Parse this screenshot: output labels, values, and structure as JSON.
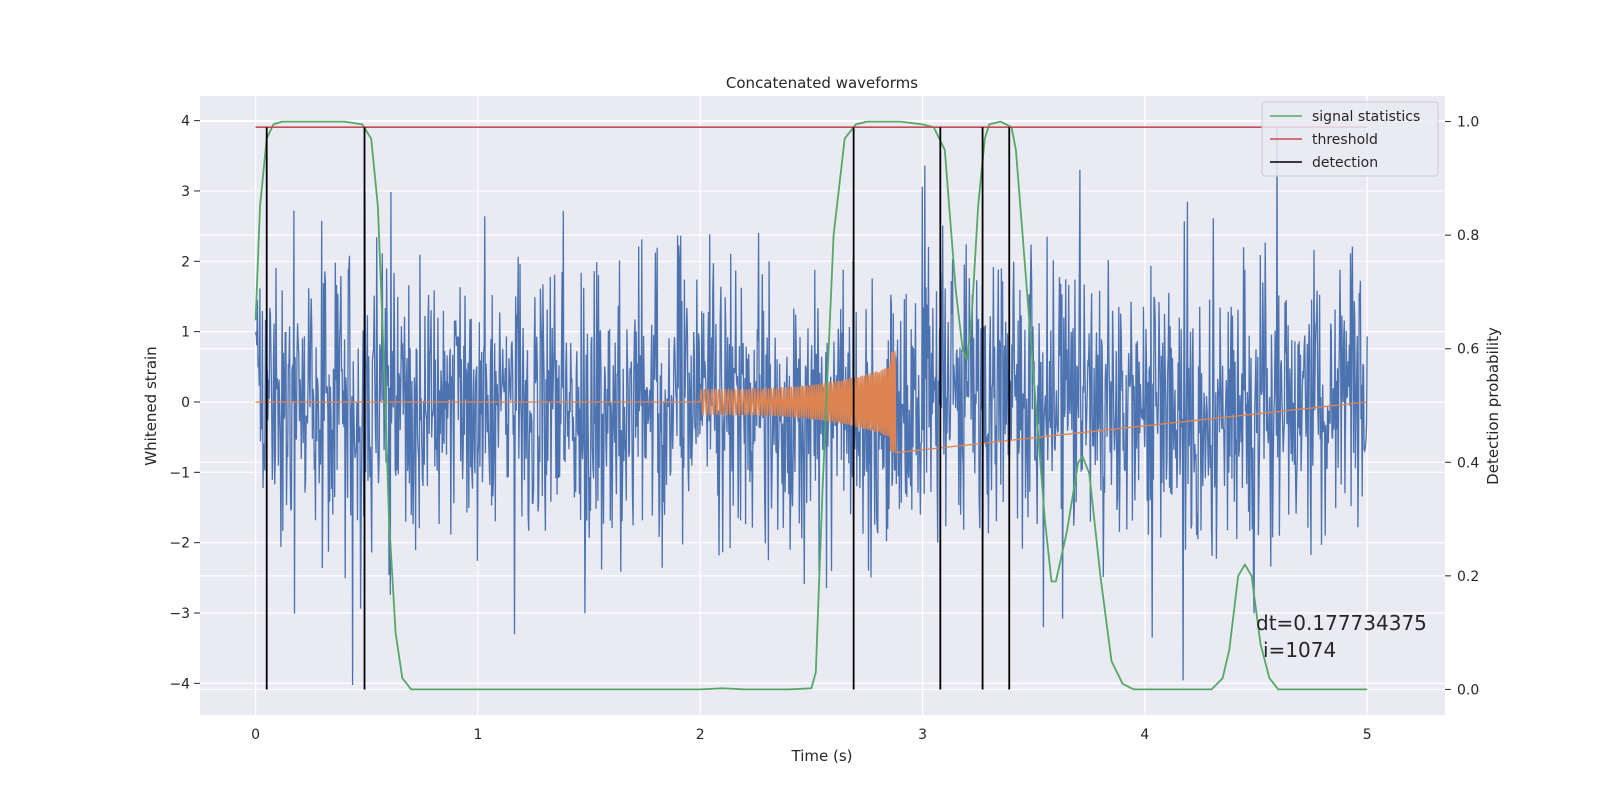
{
  "chart_data": {
    "type": "line",
    "title": "Concatenated waveforms",
    "xlabel": "Time (s)",
    "ylabel": "Whitened strain",
    "y2label": "Detection probability",
    "xlim": [
      -0.25,
      5.35
    ],
    "ylim": [
      -4.45,
      4.35
    ],
    "y2lim": [
      -0.045,
      1.045
    ],
    "xticks": [
      0,
      1,
      2,
      3,
      4,
      5
    ],
    "yticks": [
      -4,
      -3,
      -2,
      -1,
      0,
      1,
      2,
      3,
      4
    ],
    "y2ticks": [
      0.0,
      0.2,
      0.4,
      0.6,
      0.8,
      1.0
    ],
    "xtick_labels": [
      "0",
      "1",
      "2",
      "3",
      "4",
      "5"
    ],
    "ytick_labels": [
      "−4",
      "−3",
      "−2",
      "−1",
      "0",
      "1",
      "2",
      "3",
      "4"
    ],
    "y2tick_labels": [
      "0.0",
      "0.2",
      "0.4",
      "0.6",
      "0.8",
      "1.0"
    ],
    "grid": true,
    "legend_position": "top-right",
    "colors": {
      "background": "#eaeaf2",
      "grid": "#ffffff",
      "noise": "#4c72b0",
      "waveform": "#dd8452",
      "signal_statistics": "#55a868",
      "threshold": "#c44e52",
      "detection": "#000000"
    },
    "series": [
      {
        "name": "signal statistics",
        "axis": "right",
        "x": [
          0.0,
          0.02,
          0.05,
          0.08,
          0.12,
          0.2,
          0.3,
          0.4,
          0.48,
          0.52,
          0.55,
          0.58,
          0.6,
          0.63,
          0.66,
          0.7,
          0.8,
          1.0,
          1.5,
          2.0,
          2.1,
          2.2,
          2.4,
          2.5,
          2.52,
          2.55,
          2.6,
          2.65,
          2.7,
          2.75,
          2.9,
          3.0,
          3.05,
          3.1,
          3.12,
          3.15,
          3.18,
          3.2,
          3.22,
          3.25,
          3.28,
          3.3,
          3.35,
          3.4,
          3.42,
          3.45,
          3.5,
          3.55,
          3.58,
          3.6,
          3.65,
          3.7,
          3.72,
          3.75,
          3.8,
          3.85,
          3.9,
          3.95,
          4.0,
          4.3,
          4.35,
          4.38,
          4.42,
          4.45,
          4.48,
          4.52,
          4.56,
          4.6,
          4.7,
          5.0
        ],
        "y": [
          0.65,
          0.85,
          0.97,
          0.995,
          1.0,
          1.0,
          1.0,
          1.0,
          0.995,
          0.97,
          0.85,
          0.55,
          0.3,
          0.1,
          0.02,
          0.0,
          0.0,
          0.0,
          0.0,
          0.0,
          0.002,
          0.0,
          0.0,
          0.002,
          0.03,
          0.35,
          0.8,
          0.97,
          0.995,
          1.0,
          1.0,
          0.995,
          0.99,
          0.95,
          0.85,
          0.7,
          0.6,
          0.58,
          0.65,
          0.85,
          0.97,
          0.995,
          1.0,
          0.99,
          0.95,
          0.8,
          0.55,
          0.3,
          0.19,
          0.19,
          0.28,
          0.4,
          0.41,
          0.38,
          0.2,
          0.05,
          0.01,
          0.0,
          0.0,
          0.0,
          0.02,
          0.07,
          0.2,
          0.22,
          0.2,
          0.08,
          0.02,
          0.0,
          0.0,
          0.0
        ]
      },
      {
        "name": "threshold",
        "axis": "right",
        "x": [
          0.0,
          5.0
        ],
        "y": [
          0.99,
          0.99
        ]
      },
      {
        "name": "detection",
        "axis": "right",
        "type": "vlines",
        "x": [
          0.05,
          0.49,
          2.69,
          3.08,
          3.27,
          3.39
        ],
        "y_range": [
          0.0,
          0.99
        ]
      },
      {
        "axis": "left",
        "description": "noise",
        "x_range": [
          0.0,
          5.0
        ],
        "y_range": [
          -4.1,
          3.9
        ]
      },
      {
        "axis": "left",
        "description": "waveform",
        "x_range": [
          2.0,
          2.88
        ],
        "y_range": [
          -0.75,
          0.75
        ]
      }
    ],
    "annotations": [
      "dt=0.177734375",
      "i=1074"
    ]
  }
}
